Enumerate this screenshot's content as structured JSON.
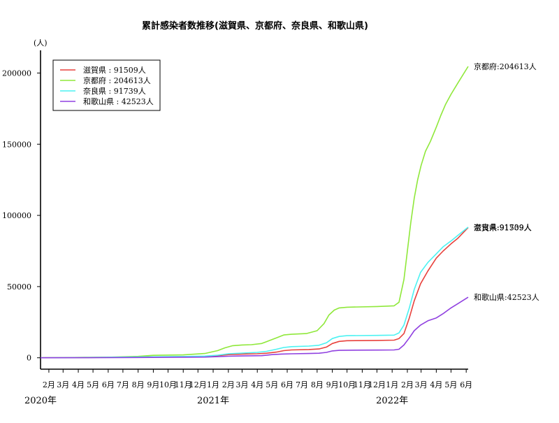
{
  "chart_data": {
    "type": "line",
    "title": "累計感染者数推移(滋賀県、京都府、奈良県、和歌山県)",
    "y_unit": "(人)",
    "ylim": [
      -8000,
      212000
    ],
    "y_ticks": [
      0,
      50000,
      100000,
      150000,
      200000
    ],
    "y_tick_labels": [
      "0",
      "50000",
      "100000",
      "150000",
      "200000"
    ],
    "x_range": [
      "2020-01-15",
      "2022-06-05"
    ],
    "x_ticks": [
      {
        "date": "2020-02-01",
        "label": "2月"
      },
      {
        "date": "2020-03-01",
        "label": "3月"
      },
      {
        "date": "2020-04-01",
        "label": "4月"
      },
      {
        "date": "2020-05-01",
        "label": "5月"
      },
      {
        "date": "2020-06-01",
        "label": "6月"
      },
      {
        "date": "2020-07-01",
        "label": "7月"
      },
      {
        "date": "2020-08-01",
        "label": "8月"
      },
      {
        "date": "2020-09-01",
        "label": "9月"
      },
      {
        "date": "2020-10-01",
        "label": "10月"
      },
      {
        "date": "2020-11-01",
        "label": "11月"
      },
      {
        "date": "2020-12-01",
        "label": "12月"
      },
      {
        "date": "2021-01-01",
        "label": "1月"
      },
      {
        "date": "2021-02-01",
        "label": "2月"
      },
      {
        "date": "2021-03-01",
        "label": "3月"
      },
      {
        "date": "2021-04-01",
        "label": "4月"
      },
      {
        "date": "2021-05-01",
        "label": "5月"
      },
      {
        "date": "2021-06-01",
        "label": "6月"
      },
      {
        "date": "2021-07-01",
        "label": "7月"
      },
      {
        "date": "2021-08-01",
        "label": "8月"
      },
      {
        "date": "2021-09-01",
        "label": "9月"
      },
      {
        "date": "2021-10-01",
        "label": "10月"
      },
      {
        "date": "2021-11-01",
        "label": "11月"
      },
      {
        "date": "2021-12-01",
        "label": "12月"
      },
      {
        "date": "2022-01-01",
        "label": "1月"
      },
      {
        "date": "2022-02-01",
        "label": "2月"
      },
      {
        "date": "2022-03-01",
        "label": "3月"
      },
      {
        "date": "2022-04-01",
        "label": "4月"
      },
      {
        "date": "2022-05-01",
        "label": "5月"
      },
      {
        "date": "2022-06-01",
        "label": "6月"
      }
    ],
    "year_labels": [
      {
        "date": "2020-01-01",
        "label": "2020年"
      },
      {
        "date": "2021-01-01",
        "label": "2021年"
      },
      {
        "date": "2022-01-01",
        "label": "2022年"
      }
    ],
    "legend_position": "top-left",
    "grid": false,
    "series": [
      {
        "name": "滋賀県",
        "legend_label": "滋賀県 : 91509人",
        "end_label": "滋賀県:91509人",
        "color": "#e8413c",
        "x": [
          "2020-01-15",
          "2020-04-01",
          "2020-08-01",
          "2020-11-01",
          "2020-12-15",
          "2021-01-10",
          "2021-02-01",
          "2021-03-01",
          "2021-04-01",
          "2021-04-20",
          "2021-05-10",
          "2021-05-25",
          "2021-06-10",
          "2021-07-15",
          "2021-08-05",
          "2021-08-20",
          "2021-09-01",
          "2021-09-15",
          "2021-10-01",
          "2021-12-01",
          "2022-01-05",
          "2022-01-15",
          "2022-01-25",
          "2022-02-05",
          "2022-02-15",
          "2022-02-28",
          "2022-03-15",
          "2022-04-01",
          "2022-04-15",
          "2022-05-01",
          "2022-05-15",
          "2022-06-05"
        ],
        "y": [
          0,
          100,
          500,
          800,
          1000,
          1500,
          2200,
          2600,
          2800,
          3200,
          4000,
          5000,
          5500,
          5800,
          6200,
          7500,
          10000,
          11500,
          12000,
          12200,
          12400,
          13500,
          17000,
          28000,
          40000,
          52000,
          61000,
          70000,
          75000,
          80000,
          84000,
          91509
        ]
      },
      {
        "name": "京都府",
        "legend_label": "京都府 : 204613人",
        "end_label": "京都府:204613人",
        "color": "#8fe83a",
        "x": [
          "2020-01-15",
          "2020-03-01",
          "2020-04-15",
          "2020-06-01",
          "2020-08-01",
          "2020-09-01",
          "2020-11-01",
          "2020-12-15",
          "2021-01-10",
          "2021-01-25",
          "2021-02-10",
          "2021-03-01",
          "2021-03-20",
          "2021-04-10",
          "2021-04-25",
          "2021-05-10",
          "2021-05-25",
          "2021-06-10",
          "2021-07-10",
          "2021-08-01",
          "2021-08-15",
          "2021-08-25",
          "2021-09-05",
          "2021-09-15",
          "2021-10-01",
          "2021-12-01",
          "2022-01-05",
          "2022-01-15",
          "2022-01-25",
          "2022-02-01",
          "2022-02-08",
          "2022-02-15",
          "2022-02-22",
          "2022-03-01",
          "2022-03-10",
          "2022-03-20",
          "2022-04-01",
          "2022-04-10",
          "2022-04-20",
          "2022-05-01",
          "2022-05-15",
          "2022-06-05"
        ],
        "y": [
          0,
          50,
          300,
          400,
          1000,
          1700,
          2000,
          3000,
          5000,
          7000,
          8500,
          9000,
          9200,
          10000,
          12000,
          14000,
          16000,
          16500,
          17000,
          19000,
          24000,
          30000,
          33500,
          35000,
          35500,
          36000,
          36500,
          39000,
          55000,
          75000,
          95000,
          112000,
          125000,
          135000,
          145000,
          152000,
          162000,
          170000,
          178000,
          185000,
          193000,
          204613
        ]
      },
      {
        "name": "奈良県",
        "legend_label": "奈良県 : 91739人",
        "end_label": "奈良県:91739人",
        "color": "#4cf2f2",
        "x": [
          "2020-01-15",
          "2020-04-01",
          "2020-08-01",
          "2020-11-01",
          "2020-12-15",
          "2021-01-10",
          "2021-02-01",
          "2021-03-01",
          "2021-04-01",
          "2021-04-20",
          "2021-05-10",
          "2021-05-25",
          "2021-06-10",
          "2021-07-15",
          "2021-08-05",
          "2021-08-20",
          "2021-09-01",
          "2021-09-15",
          "2021-10-01",
          "2021-12-01",
          "2022-01-05",
          "2022-01-15",
          "2022-01-25",
          "2022-02-05",
          "2022-02-15",
          "2022-02-28",
          "2022-03-15",
          "2022-04-01",
          "2022-04-15",
          "2022-05-01",
          "2022-05-15",
          "2022-06-05"
        ],
        "y": [
          0,
          100,
          600,
          900,
          1200,
          1800,
          2800,
          3300,
          3800,
          4500,
          6000,
          7200,
          7800,
          8200,
          8800,
          10500,
          13500,
          15000,
          15500,
          15700,
          15900,
          17500,
          23000,
          35000,
          48000,
          60000,
          67000,
          73000,
          78000,
          82000,
          86000,
          91739
        ]
      },
      {
        "name": "和歌山県",
        "legend_label": "和歌山県 : 42523人",
        "end_label": "和歌山県:42523人",
        "color": "#9040e0",
        "x": [
          "2020-01-15",
          "2020-04-01",
          "2020-08-01",
          "2020-11-01",
          "2020-12-15",
          "2021-01-10",
          "2021-02-01",
          "2021-03-01",
          "2021-04-10",
          "2021-05-01",
          "2021-05-20",
          "2021-06-10",
          "2021-07-15",
          "2021-08-05",
          "2021-08-20",
          "2021-09-01",
          "2021-09-15",
          "2021-10-01",
          "2021-12-01",
          "2022-01-05",
          "2022-01-15",
          "2022-01-25",
          "2022-02-05",
          "2022-02-15",
          "2022-02-28",
          "2022-03-15",
          "2022-04-01",
          "2022-04-15",
          "2022-05-01",
          "2022-05-15",
          "2022-06-05"
        ],
        "y": [
          0,
          50,
          200,
          400,
          500,
          800,
          1100,
          1300,
          1500,
          2200,
          2600,
          2800,
          3000,
          3200,
          3800,
          4800,
          5200,
          5300,
          5400,
          5500,
          6000,
          9000,
          14000,
          19000,
          23000,
          26000,
          28000,
          31000,
          35000,
          38000,
          42523
        ]
      }
    ]
  }
}
